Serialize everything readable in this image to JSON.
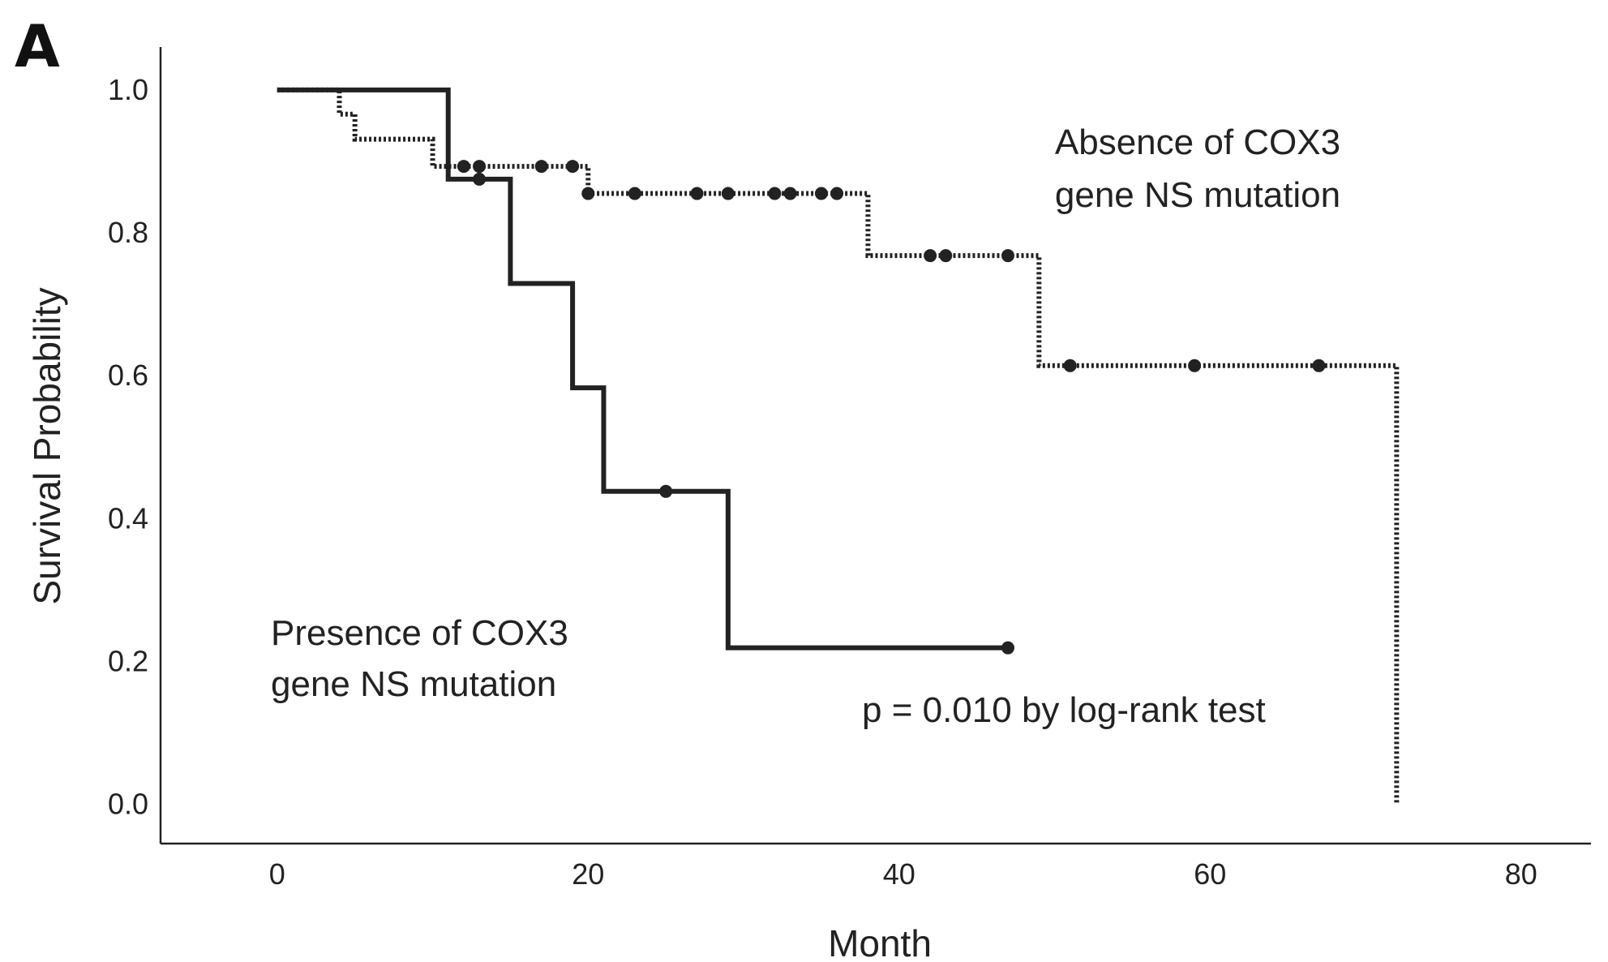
{
  "chart_data": {
    "type": "line",
    "subtype": "kaplan-meier-step",
    "panel_label": "A",
    "xlabel": "Month",
    "ylabel": "Survival Probability",
    "xlim": [
      -7.5,
      84.5
    ],
    "ylim": [
      -0.055,
      1.06
    ],
    "x_ticks": [
      0,
      20,
      40,
      60,
      80
    ],
    "x_tick_labels": [
      "0",
      "20",
      "40",
      "60",
      "80"
    ],
    "y_ticks": [
      0.0,
      0.2,
      0.4,
      0.6,
      0.8,
      1.0
    ],
    "y_tick_labels": [
      "0.0",
      "0.2",
      "0.4",
      "0.6",
      "0.8",
      "1.0"
    ],
    "grid": false,
    "series": [
      {
        "name": "Absence of COX3 gene NS mutation",
        "label_lines": [
          "Absence of COX3",
          "gene NS mutation"
        ],
        "line_style": "dotted",
        "color": "#222222",
        "steps": [
          [
            0,
            1.0
          ],
          [
            4,
            0.966
          ],
          [
            5,
            0.931
          ],
          [
            10,
            0.893
          ],
          [
            20,
            0.855
          ],
          [
            38,
            0.768
          ],
          [
            49,
            0.614
          ],
          [
            72,
            0.0
          ]
        ],
        "end_x": 72,
        "censored": [
          [
            12,
            0.893
          ],
          [
            13,
            0.893
          ],
          [
            17,
            0.893
          ],
          [
            19,
            0.893
          ],
          [
            20,
            0.855
          ],
          [
            23,
            0.855
          ],
          [
            27,
            0.855
          ],
          [
            29,
            0.855
          ],
          [
            32,
            0.855
          ],
          [
            33,
            0.855
          ],
          [
            35,
            0.855
          ],
          [
            36,
            0.855
          ],
          [
            42,
            0.768
          ],
          [
            43,
            0.768
          ],
          [
            47,
            0.768
          ],
          [
            51,
            0.614
          ],
          [
            59,
            0.614
          ],
          [
            67,
            0.614
          ]
        ]
      },
      {
        "name": "Presence of COX3 gene NS mutation",
        "label_lines": [
          "Presence of COX3",
          "gene NS mutation"
        ],
        "line_style": "solid",
        "color": "#222222",
        "steps": [
          [
            0,
            1.0
          ],
          [
            11,
            0.875
          ],
          [
            15,
            0.729
          ],
          [
            19,
            0.583
          ],
          [
            21,
            0.438
          ],
          [
            29,
            0.219
          ]
        ],
        "end_x": 47,
        "censored": [
          [
            13,
            0.875
          ],
          [
            25,
            0.438
          ],
          [
            47,
            0.219
          ]
        ]
      }
    ],
    "annotations": [
      "p = 0.010 by log-rank test"
    ]
  }
}
